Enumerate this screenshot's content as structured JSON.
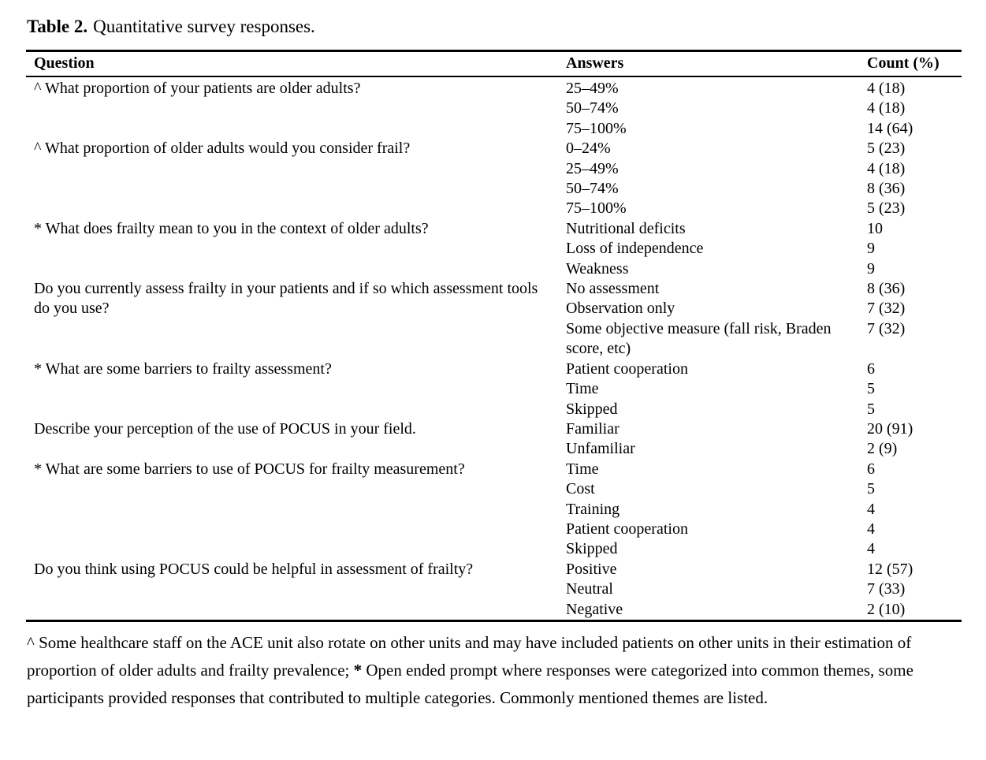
{
  "caption": {
    "label": "Table 2.",
    "text": "Quantitative survey responses."
  },
  "table": {
    "headers": [
      "Question",
      "Answers",
      "Count (%)"
    ],
    "groups": [
      {
        "question": "^ What proportion of your patients are older adults?",
        "rows": [
          {
            "answer": "25–49%",
            "count": "4 (18)"
          },
          {
            "answer": "50–74%",
            "count": "4 (18)"
          },
          {
            "answer": "75–100%",
            "count": "14 (64)"
          }
        ]
      },
      {
        "question": "^ What proportion of older adults would you consider frail?",
        "rows": [
          {
            "answer": "0–24%",
            "count": "5 (23)"
          },
          {
            "answer": "25–49%",
            "count": "4 (18)"
          },
          {
            "answer": "50–74%",
            "count": "8 (36)"
          },
          {
            "answer": "75–100%",
            "count": "5 (23)"
          }
        ]
      },
      {
        "question": "* What does frailty mean to you in the context of older adults?",
        "rows": [
          {
            "answer": "Nutritional deficits",
            "count": "10"
          },
          {
            "answer": "Loss of independence",
            "count": "9"
          },
          {
            "answer": "Weakness",
            "count": "9"
          }
        ]
      },
      {
        "question": "Do you currently assess frailty in your patients and if so which assessment tools do you use?",
        "rows": [
          {
            "answer": "No assessment",
            "count": "8 (36)"
          },
          {
            "answer": "Observation only",
            "count": "7 (32)"
          },
          {
            "answer": "Some objective measure (fall risk, Braden score, etc)",
            "count": "7 (32)"
          }
        ]
      },
      {
        "question": "* What are some barriers to frailty assessment?",
        "rows": [
          {
            "answer": "Patient cooperation",
            "count": "6"
          },
          {
            "answer": "Time",
            "count": "5"
          },
          {
            "answer": "Skipped",
            "count": "5"
          }
        ]
      },
      {
        "question": "Describe your perception of the use of POCUS in your field.",
        "rows": [
          {
            "answer": "Familiar",
            "count": "20 (91)"
          },
          {
            "answer": "Unfamiliar",
            "count": "2 (9)"
          }
        ]
      },
      {
        "question": "* What are some barriers to use of POCUS for frailty measurement?",
        "rows": [
          {
            "answer": "Time",
            "count": "6"
          },
          {
            "answer": "Cost",
            "count": "5"
          },
          {
            "answer": "Training",
            "count": "4"
          },
          {
            "answer": "Patient cooperation",
            "count": "4"
          },
          {
            "answer": "Skipped",
            "count": "4"
          }
        ]
      },
      {
        "question": "Do you think using POCUS could be helpful in assessment of frailty?",
        "rows": [
          {
            "answer": "Positive",
            "count": "12 (57)"
          },
          {
            "answer": "Neutral",
            "count": "7 (33)"
          },
          {
            "answer": "Negative",
            "count": "2 (10)"
          }
        ]
      }
    ]
  },
  "footnote": {
    "segments": [
      {
        "text": "^ Some healthcare staff on the ACE unit also rotate on other units and may have included patients on other units in their estimation of proportion of older adults and frailty prevalence; ",
        "bold": false
      },
      {
        "text": "*",
        "bold": true
      },
      {
        "text": " Open ended prompt where responses were categorized into common themes, some participants provided responses that contributed to multiple categories. Commonly mentioned themes are listed.",
        "bold": false
      }
    ]
  }
}
